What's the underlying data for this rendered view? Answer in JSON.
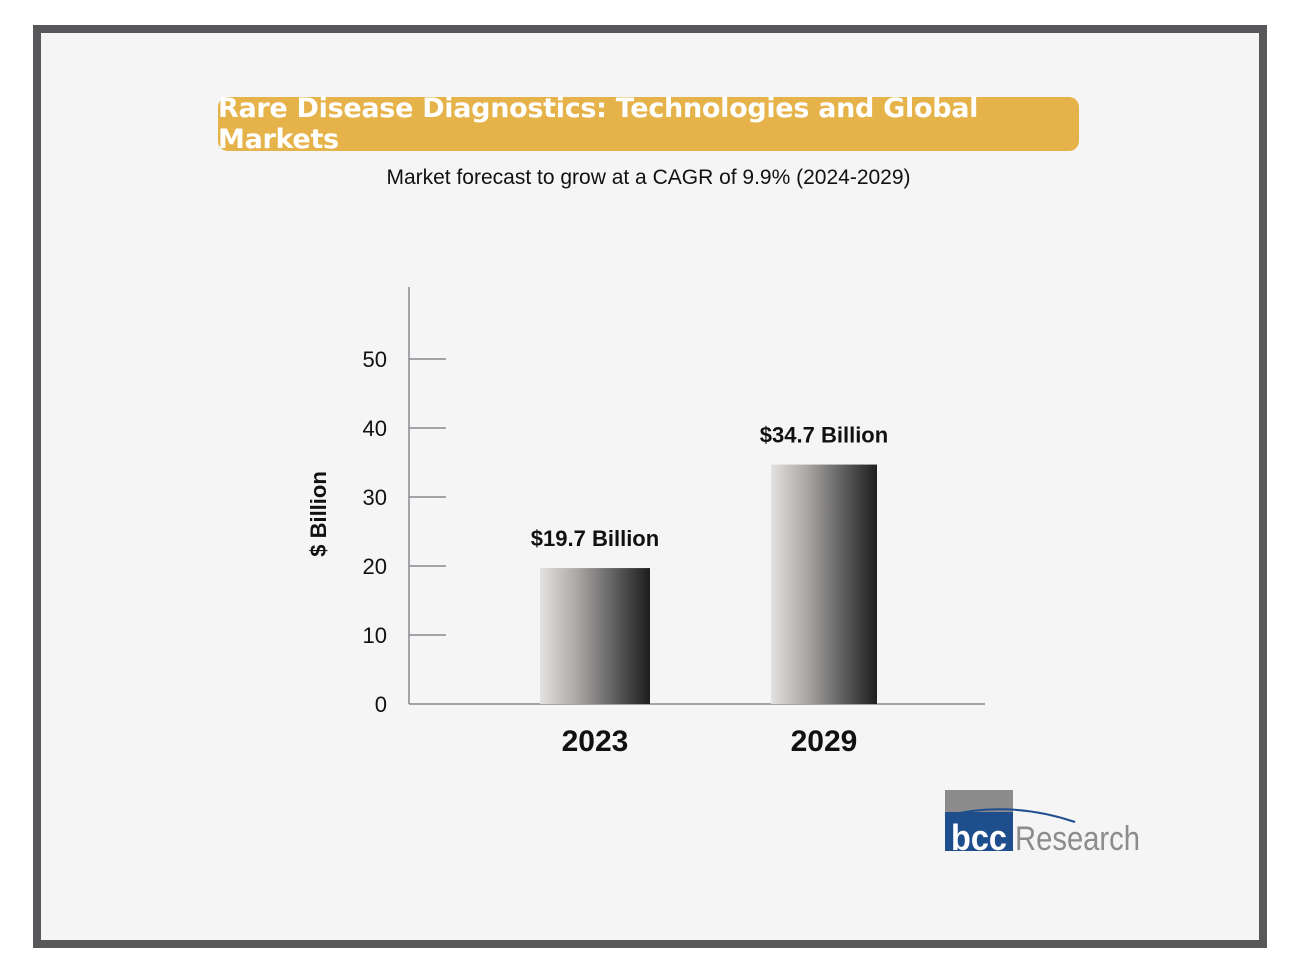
{
  "chart_data": {
    "type": "bar",
    "title": "Rare Disease Diagnostics: Technologies and Global Markets",
    "subtitle": "Market forecast to grow at a CAGR of 9.9% (2024-2029)",
    "categories": [
      "2023",
      "2029"
    ],
    "values": [
      19.7,
      34.7
    ],
    "data_labels": [
      "$19.7 Billion",
      "$34.7 Billion"
    ],
    "xlabel": "",
    "ylabel": "$ Billion",
    "ylim": [
      0,
      57
    ],
    "yticks": [
      0,
      10,
      20,
      30,
      40,
      50
    ],
    "grid": false,
    "legend": "none"
  },
  "colors": {
    "banner": "#e5b34a",
    "frame": "#58585a",
    "axis": "#8a8a8e",
    "logo_blue": "#1f4e8c",
    "logo_gray": "#8c8c8c"
  },
  "logo": {
    "part1": "bcc",
    "part2": "Research"
  }
}
